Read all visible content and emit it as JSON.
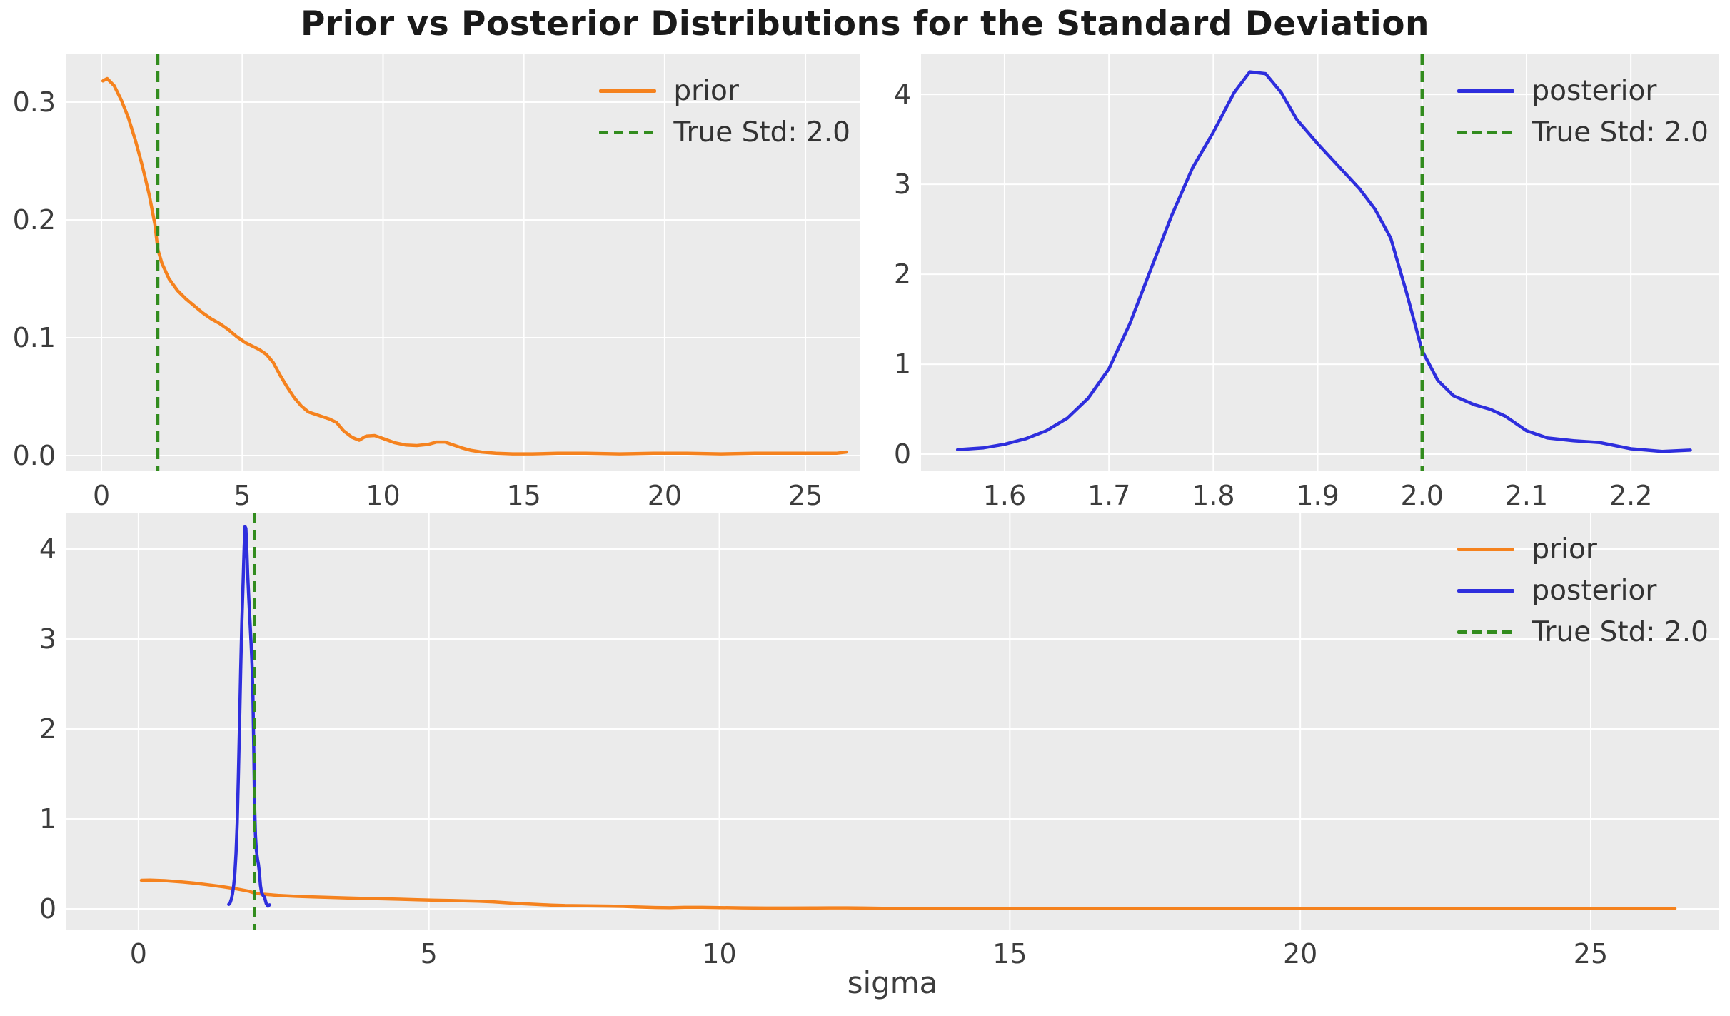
{
  "title": "Prior vs Posterior Distributions for the Standard Deviation",
  "xlabel": "sigma",
  "true_std": 2.0,
  "colors": {
    "prior": "#f5821e",
    "posterior": "#2e2edd",
    "true_std": "#328c1e",
    "plot_bg": "#ebebeb",
    "grid": "#ffffff",
    "tick_text": "#3d3d3d",
    "legend_text": "#333333",
    "title_text": "#1a1a1a",
    "figure_bg": "#ffffff"
  },
  "chart_data": [
    {
      "id": "ax-prior",
      "type": "line",
      "description": "Prior KDE over full sigma range",
      "xlim": [
        -1.27,
        26.95
      ],
      "ylim": [
        -0.0133,
        0.3406
      ],
      "xticks": [
        0,
        5,
        10,
        15,
        20,
        25
      ],
      "xtick_labels": [
        "0",
        "5",
        "10",
        "15",
        "20",
        "25"
      ],
      "yticks": [
        0.0,
        0.1,
        0.2,
        0.3
      ],
      "ytick_labels": [
        "0.0",
        "0.1",
        "0.2",
        "0.3"
      ],
      "grid": true,
      "vline": {
        "x": 2.0,
        "color": "true_std"
      },
      "legend_position": "upper right",
      "legend": [
        {
          "label": "prior",
          "color": "prior",
          "dashed": false
        },
        {
          "label": "True Std: 2.0",
          "color": "true_std",
          "dashed": true
        }
      ],
      "series": [
        {
          "name": "prior",
          "color": "prior",
          "x": [
            0.05,
            0.2,
            0.45,
            0.7,
            0.95,
            1.2,
            1.45,
            1.7,
            1.9,
            2.0,
            2.15,
            2.4,
            2.7,
            3.0,
            3.3,
            3.6,
            3.9,
            4.2,
            4.5,
            4.8,
            5.1,
            5.35,
            5.6,
            5.85,
            6.1,
            6.35,
            6.6,
            6.85,
            7.1,
            7.35,
            7.6,
            7.85,
            8.1,
            8.35,
            8.6,
            8.9,
            9.15,
            9.4,
            9.7,
            10.0,
            10.4,
            10.8,
            11.2,
            11.6,
            11.9,
            12.2,
            12.5,
            12.8,
            13.1,
            13.5,
            14.0,
            14.6,
            15.3,
            16.2,
            17.2,
            18.4,
            19.6,
            20.8,
            22.0,
            23.2,
            24.4,
            25.4,
            26.1,
            26.45
          ],
          "y": [
            0.318,
            0.32,
            0.314,
            0.302,
            0.287,
            0.268,
            0.246,
            0.221,
            0.196,
            0.175,
            0.163,
            0.15,
            0.14,
            0.133,
            0.127,
            0.121,
            0.116,
            0.112,
            0.107,
            0.101,
            0.096,
            0.093,
            0.09,
            0.086,
            0.079,
            0.068,
            0.058,
            0.049,
            0.042,
            0.037,
            0.035,
            0.033,
            0.031,
            0.028,
            0.021,
            0.0155,
            0.013,
            0.0165,
            0.017,
            0.0145,
            0.011,
            0.009,
            0.0085,
            0.0095,
            0.0115,
            0.0115,
            0.009,
            0.0065,
            0.0045,
            0.003,
            0.002,
            0.0015,
            0.0015,
            0.002,
            0.002,
            0.0015,
            0.002,
            0.002,
            0.0015,
            0.002,
            0.002,
            0.002,
            0.002,
            0.003
          ]
        }
      ]
    },
    {
      "id": "ax-posterior",
      "type": "line",
      "description": "Posterior KDE zoomed near sigma = 1.9",
      "xlim": [
        1.52,
        2.284
      ],
      "ylim": [
        -0.19,
        4.445
      ],
      "xticks": [
        1.6,
        1.7,
        1.8,
        1.9,
        2.0,
        2.1,
        2.2
      ],
      "xtick_labels": [
        "1.6",
        "1.7",
        "1.8",
        "1.9",
        "2.0",
        "2.1",
        "2.2"
      ],
      "yticks": [
        0,
        1,
        2,
        3,
        4
      ],
      "ytick_labels": [
        "0",
        "1",
        "2",
        "3",
        "4"
      ],
      "grid": true,
      "vline": {
        "x": 2.0,
        "color": "true_std"
      },
      "legend_position": "upper right",
      "legend": [
        {
          "label": "posterior",
          "color": "posterior",
          "dashed": false
        },
        {
          "label": "True Std: 2.0",
          "color": "true_std",
          "dashed": true
        }
      ],
      "series": [
        {
          "name": "posterior",
          "color": "posterior",
          "x": [
            1.555,
            1.58,
            1.6,
            1.62,
            1.64,
            1.66,
            1.68,
            1.7,
            1.72,
            1.74,
            1.76,
            1.78,
            1.8,
            1.82,
            1.835,
            1.85,
            1.865,
            1.88,
            1.9,
            1.92,
            1.94,
            1.955,
            1.97,
            1.985,
            2.0,
            2.015,
            2.03,
            2.05,
            2.065,
            2.08,
            2.1,
            2.12,
            2.145,
            2.17,
            2.2,
            2.23,
            2.257
          ],
          "y": [
            0.05,
            0.07,
            0.11,
            0.17,
            0.26,
            0.4,
            0.62,
            0.95,
            1.45,
            2.05,
            2.65,
            3.18,
            3.58,
            4.02,
            4.25,
            4.23,
            4.02,
            3.72,
            3.45,
            3.2,
            2.95,
            2.72,
            2.4,
            1.8,
            1.15,
            0.82,
            0.65,
            0.55,
            0.5,
            0.42,
            0.26,
            0.18,
            0.15,
            0.13,
            0.06,
            0.03,
            0.045
          ]
        }
      ]
    },
    {
      "id": "ax-combined",
      "type": "line",
      "description": "Prior and posterior overlaid on full sigma range",
      "xlim": [
        -1.24,
        27.2
      ],
      "ylim": [
        -0.23,
        4.405
      ],
      "xticks": [
        0,
        5,
        10,
        15,
        20,
        25
      ],
      "xtick_labels": [
        "0",
        "5",
        "10",
        "15",
        "20",
        "25"
      ],
      "yticks": [
        0,
        1,
        2,
        3,
        4
      ],
      "ytick_labels": [
        "0",
        "1",
        "2",
        "3",
        "4"
      ],
      "grid": true,
      "vline": {
        "x": 2.0,
        "color": "true_std"
      },
      "legend_position": "upper right",
      "legend": [
        {
          "label": "prior",
          "color": "prior",
          "dashed": false
        },
        {
          "label": "posterior",
          "color": "posterior",
          "dashed": false
        },
        {
          "label": "True Std: 2.0",
          "color": "true_std",
          "dashed": true
        }
      ],
      "series": [
        {
          "name": "prior",
          "color": "prior",
          "x": [
            0.05,
            0.2,
            0.45,
            0.7,
            0.95,
            1.2,
            1.45,
            1.7,
            1.9,
            2.0,
            2.15,
            2.4,
            2.7,
            3.0,
            3.3,
            3.6,
            3.9,
            4.2,
            4.5,
            4.8,
            5.1,
            5.35,
            5.6,
            5.85,
            6.1,
            6.35,
            6.6,
            6.85,
            7.1,
            7.35,
            7.6,
            7.85,
            8.1,
            8.35,
            8.6,
            8.9,
            9.15,
            9.4,
            9.7,
            10.0,
            10.4,
            10.8,
            11.2,
            11.6,
            11.9,
            12.2,
            12.5,
            12.8,
            13.1,
            13.5,
            14.0,
            14.6,
            15.3,
            16.2,
            17.2,
            18.4,
            19.6,
            20.8,
            22.0,
            23.2,
            24.4,
            25.4,
            26.1,
            26.45
          ],
          "y": [
            0.318,
            0.32,
            0.314,
            0.302,
            0.287,
            0.268,
            0.246,
            0.221,
            0.196,
            0.175,
            0.163,
            0.15,
            0.14,
            0.133,
            0.127,
            0.121,
            0.116,
            0.112,
            0.107,
            0.101,
            0.096,
            0.093,
            0.09,
            0.086,
            0.079,
            0.068,
            0.058,
            0.049,
            0.042,
            0.037,
            0.035,
            0.033,
            0.031,
            0.028,
            0.021,
            0.0155,
            0.013,
            0.0165,
            0.017,
            0.0145,
            0.011,
            0.009,
            0.0085,
            0.0095,
            0.0115,
            0.0115,
            0.009,
            0.0065,
            0.0045,
            0.003,
            0.002,
            0.0015,
            0.0015,
            0.002,
            0.002,
            0.0015,
            0.002,
            0.002,
            0.0015,
            0.002,
            0.002,
            0.002,
            0.002,
            0.003
          ]
        },
        {
          "name": "posterior",
          "color": "posterior",
          "x": [
            1.555,
            1.58,
            1.6,
            1.62,
            1.64,
            1.66,
            1.68,
            1.7,
            1.72,
            1.74,
            1.76,
            1.78,
            1.8,
            1.82,
            1.835,
            1.85,
            1.865,
            1.88,
            1.9,
            1.92,
            1.94,
            1.955,
            1.97,
            1.985,
            2.0,
            2.015,
            2.03,
            2.05,
            2.065,
            2.08,
            2.1,
            2.12,
            2.145,
            2.17,
            2.2,
            2.23,
            2.257
          ],
          "y": [
            0.05,
            0.07,
            0.11,
            0.17,
            0.26,
            0.4,
            0.62,
            0.95,
            1.45,
            2.05,
            2.65,
            3.18,
            3.58,
            4.02,
            4.25,
            4.23,
            4.02,
            3.72,
            3.45,
            3.2,
            2.95,
            2.72,
            2.4,
            1.8,
            1.15,
            0.82,
            0.65,
            0.55,
            0.5,
            0.42,
            0.26,
            0.18,
            0.15,
            0.13,
            0.06,
            0.03,
            0.045
          ]
        }
      ]
    }
  ]
}
